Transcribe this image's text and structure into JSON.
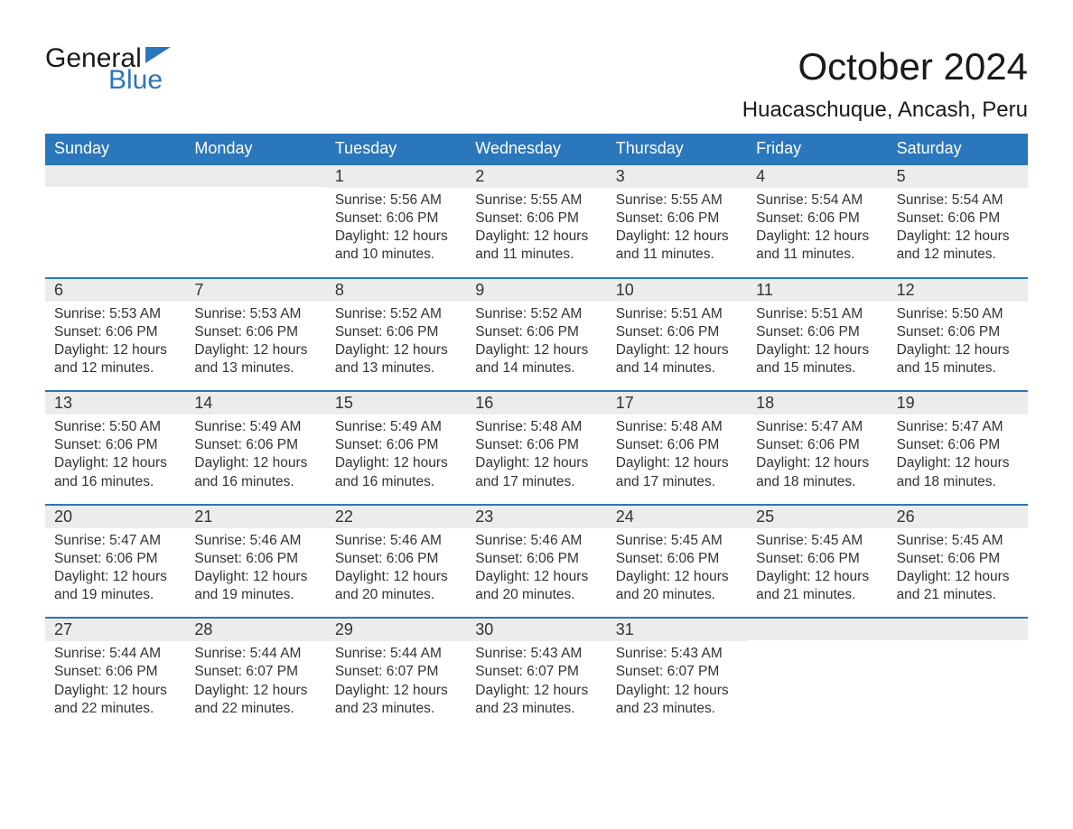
{
  "brand": {
    "word1": "General",
    "word2": "Blue",
    "word1_color": "#1a1a1a",
    "word2_color": "#2a77bb",
    "flag_color": "#2a77bb"
  },
  "header": {
    "month_title": "October 2024",
    "location": "Huacaschuque, Ancash, Peru"
  },
  "colors": {
    "header_bg": "#2a77bb",
    "header_text": "#ffffff",
    "daynum_bg": "#ececec",
    "body_text": "#333333",
    "row_border": "#2a77bb",
    "page_bg": "#ffffff"
  },
  "fonts": {
    "month_title_pt": 42,
    "location_pt": 24,
    "weekday_pt": 18,
    "daynum_pt": 18,
    "body_pt": 15.5
  },
  "weekdays": [
    "Sunday",
    "Monday",
    "Tuesday",
    "Wednesday",
    "Thursday",
    "Friday",
    "Saturday"
  ],
  "labels": {
    "sunrise": "Sunrise:",
    "sunset": "Sunset:",
    "daylight_prefix": "Daylight:",
    "hours_word": "hours",
    "and_word": "and",
    "minutes_word": "minutes."
  },
  "calendar": {
    "type": "table",
    "columns": 7,
    "rows": 5,
    "leading_blanks": 2,
    "days": [
      {
        "n": 1,
        "sunrise": "5:56 AM",
        "sunset": "6:06 PM",
        "dl_h": 12,
        "dl_m": 10
      },
      {
        "n": 2,
        "sunrise": "5:55 AM",
        "sunset": "6:06 PM",
        "dl_h": 12,
        "dl_m": 11
      },
      {
        "n": 3,
        "sunrise": "5:55 AM",
        "sunset": "6:06 PM",
        "dl_h": 12,
        "dl_m": 11
      },
      {
        "n": 4,
        "sunrise": "5:54 AM",
        "sunset": "6:06 PM",
        "dl_h": 12,
        "dl_m": 11
      },
      {
        "n": 5,
        "sunrise": "5:54 AM",
        "sunset": "6:06 PM",
        "dl_h": 12,
        "dl_m": 12
      },
      {
        "n": 6,
        "sunrise": "5:53 AM",
        "sunset": "6:06 PM",
        "dl_h": 12,
        "dl_m": 12
      },
      {
        "n": 7,
        "sunrise": "5:53 AM",
        "sunset": "6:06 PM",
        "dl_h": 12,
        "dl_m": 13
      },
      {
        "n": 8,
        "sunrise": "5:52 AM",
        "sunset": "6:06 PM",
        "dl_h": 12,
        "dl_m": 13
      },
      {
        "n": 9,
        "sunrise": "5:52 AM",
        "sunset": "6:06 PM",
        "dl_h": 12,
        "dl_m": 14
      },
      {
        "n": 10,
        "sunrise": "5:51 AM",
        "sunset": "6:06 PM",
        "dl_h": 12,
        "dl_m": 14
      },
      {
        "n": 11,
        "sunrise": "5:51 AM",
        "sunset": "6:06 PM",
        "dl_h": 12,
        "dl_m": 15
      },
      {
        "n": 12,
        "sunrise": "5:50 AM",
        "sunset": "6:06 PM",
        "dl_h": 12,
        "dl_m": 15
      },
      {
        "n": 13,
        "sunrise": "5:50 AM",
        "sunset": "6:06 PM",
        "dl_h": 12,
        "dl_m": 16
      },
      {
        "n": 14,
        "sunrise": "5:49 AM",
        "sunset": "6:06 PM",
        "dl_h": 12,
        "dl_m": 16
      },
      {
        "n": 15,
        "sunrise": "5:49 AM",
        "sunset": "6:06 PM",
        "dl_h": 12,
        "dl_m": 16
      },
      {
        "n": 16,
        "sunrise": "5:48 AM",
        "sunset": "6:06 PM",
        "dl_h": 12,
        "dl_m": 17
      },
      {
        "n": 17,
        "sunrise": "5:48 AM",
        "sunset": "6:06 PM",
        "dl_h": 12,
        "dl_m": 17
      },
      {
        "n": 18,
        "sunrise": "5:47 AM",
        "sunset": "6:06 PM",
        "dl_h": 12,
        "dl_m": 18
      },
      {
        "n": 19,
        "sunrise": "5:47 AM",
        "sunset": "6:06 PM",
        "dl_h": 12,
        "dl_m": 18
      },
      {
        "n": 20,
        "sunrise": "5:47 AM",
        "sunset": "6:06 PM",
        "dl_h": 12,
        "dl_m": 19
      },
      {
        "n": 21,
        "sunrise": "5:46 AM",
        "sunset": "6:06 PM",
        "dl_h": 12,
        "dl_m": 19
      },
      {
        "n": 22,
        "sunrise": "5:46 AM",
        "sunset": "6:06 PM",
        "dl_h": 12,
        "dl_m": 20
      },
      {
        "n": 23,
        "sunrise": "5:46 AM",
        "sunset": "6:06 PM",
        "dl_h": 12,
        "dl_m": 20
      },
      {
        "n": 24,
        "sunrise": "5:45 AM",
        "sunset": "6:06 PM",
        "dl_h": 12,
        "dl_m": 20
      },
      {
        "n": 25,
        "sunrise": "5:45 AM",
        "sunset": "6:06 PM",
        "dl_h": 12,
        "dl_m": 21
      },
      {
        "n": 26,
        "sunrise": "5:45 AM",
        "sunset": "6:06 PM",
        "dl_h": 12,
        "dl_m": 21
      },
      {
        "n": 27,
        "sunrise": "5:44 AM",
        "sunset": "6:06 PM",
        "dl_h": 12,
        "dl_m": 22
      },
      {
        "n": 28,
        "sunrise": "5:44 AM",
        "sunset": "6:07 PM",
        "dl_h": 12,
        "dl_m": 22
      },
      {
        "n": 29,
        "sunrise": "5:44 AM",
        "sunset": "6:07 PM",
        "dl_h": 12,
        "dl_m": 23
      },
      {
        "n": 30,
        "sunrise": "5:43 AM",
        "sunset": "6:07 PM",
        "dl_h": 12,
        "dl_m": 23
      },
      {
        "n": 31,
        "sunrise": "5:43 AM",
        "sunset": "6:07 PM",
        "dl_h": 12,
        "dl_m": 23
      }
    ]
  }
}
